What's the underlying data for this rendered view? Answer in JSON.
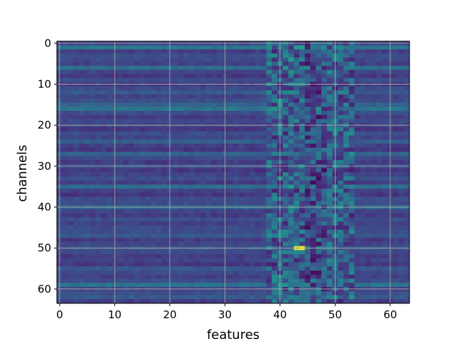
{
  "chart_data": {
    "type": "heatmap",
    "title": "",
    "xlabel": "features",
    "ylabel": "channels",
    "xlim": [
      -0.5,
      63.5
    ],
    "ylim": [
      63.5,
      -0.5
    ],
    "x_ticks": [
      0,
      10,
      20,
      30,
      40,
      50,
      60
    ],
    "y_ticks": [
      0,
      10,
      20,
      30,
      40,
      50,
      60
    ],
    "grid": true,
    "colormap": "viridis",
    "n_rows": 64,
    "n_cols": 64,
    "row_base": [
      0.25,
      0.5,
      0.22,
      0.3,
      0.28,
      0.24,
      0.45,
      0.26,
      0.2,
      0.3,
      0.22,
      0.28,
      0.35,
      0.25,
      0.3,
      0.4,
      0.48,
      0.3,
      0.22,
      0.28,
      0.25,
      0.2,
      0.3,
      0.26,
      0.38,
      0.24,
      0.2,
      0.4,
      0.28,
      0.22,
      0.3,
      0.2,
      0.25,
      0.3,
      0.22,
      0.45,
      0.25,
      0.2,
      0.3,
      0.28,
      0.42,
      0.25,
      0.22,
      0.3,
      0.24,
      0.28,
      0.3,
      0.35,
      0.22,
      0.26,
      0.32,
      0.28,
      0.22,
      0.25,
      0.2,
      0.35,
      0.28,
      0.24,
      0.3,
      0.48,
      0.25,
      0.3,
      0.35,
      0.22
    ],
    "band": {
      "start": 38,
      "end": 53
    },
    "hotspots": [
      {
        "row": 50,
        "col": 44,
        "value": 1.0
      },
      {
        "row": 50,
        "col": 43,
        "value": 0.95
      },
      {
        "row": 1,
        "col": 43,
        "value": 0.7
      },
      {
        "row": 1,
        "col": 44,
        "value": 0.7
      },
      {
        "row": 4,
        "col": 42,
        "value": 0.68
      },
      {
        "row": 35,
        "col": 42,
        "value": 0.7
      },
      {
        "row": 59,
        "col": 41,
        "value": 0.65
      },
      {
        "row": 16,
        "col": 47,
        "value": 0.6
      },
      {
        "row": 46,
        "col": 41,
        "value": 0.62
      },
      {
        "row": 7,
        "col": 42,
        "value": 0.62
      }
    ]
  }
}
